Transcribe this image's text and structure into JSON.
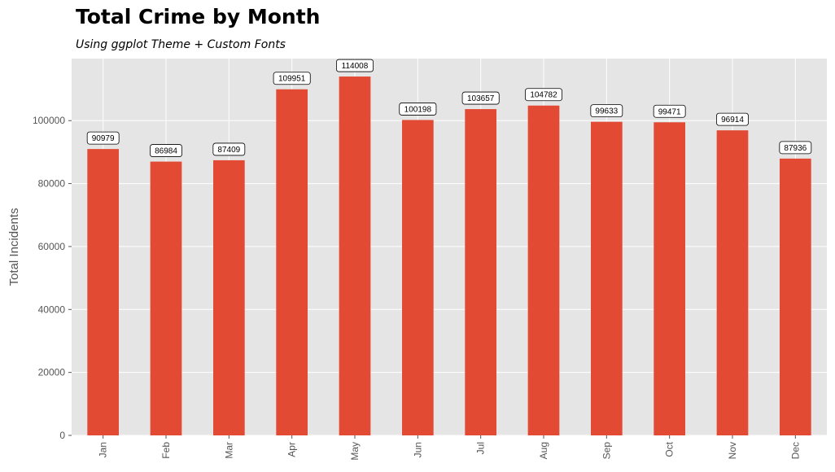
{
  "chart_data": {
    "type": "bar",
    "title": "Total Crime by Month",
    "subtitle": "Using ggplot Theme + Custom Fonts",
    "xlabel": "",
    "ylabel": "Total Incidents",
    "categories": [
      "Jan",
      "Feb",
      "Mar",
      "Apr",
      "May",
      "Jun",
      "Jul",
      "Aug",
      "Sep",
      "Oct",
      "Nov",
      "Dec"
    ],
    "values": [
      90979,
      86984,
      87409,
      109951,
      114008,
      100198,
      103657,
      104782,
      99633,
      99471,
      96914,
      87936
    ],
    "data_labels": [
      "90979",
      "86984",
      "87409",
      "109951",
      "114008",
      "100198",
      "103657",
      "104782",
      "99633",
      "99471",
      "96914",
      "87936"
    ],
    "yticks": [
      0,
      20000,
      40000,
      60000,
      80000,
      100000
    ],
    "ytick_labels": [
      "0",
      "20000",
      "40000",
      "60000",
      "80000",
      "100000"
    ],
    "ylim": [
      0,
      119708
    ],
    "grid": true,
    "legend": "none",
    "colors": {
      "bar": "#E24A33",
      "panel_background": "#E5E5E5",
      "grid": "#FFFFFF",
      "tick_text": "#555555"
    }
  }
}
